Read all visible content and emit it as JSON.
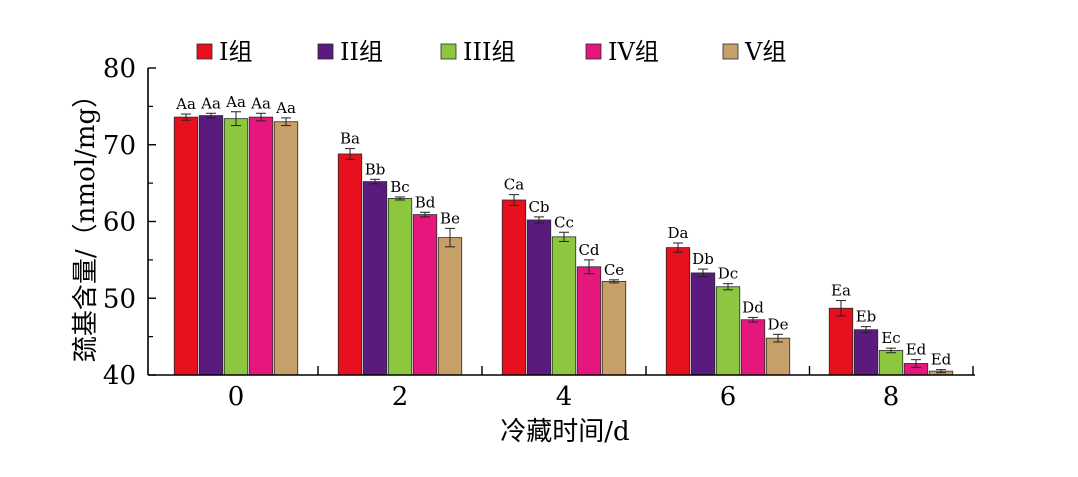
{
  "chart_data": {
    "type": "bar",
    "xlabel": "冷藏时间/d",
    "ylabel": "巯基含量/（nmol/mg）",
    "ylim": [
      40,
      80
    ],
    "yticks": [
      40,
      50,
      60,
      70,
      80
    ],
    "categories": [
      "0",
      "2",
      "4",
      "6",
      "8"
    ],
    "legend_position": "top",
    "series": [
      {
        "name": "I组",
        "color": "#e8101e",
        "values": [
          73.6,
          68.8,
          62.8,
          56.6,
          48.7
        ],
        "errors": [
          0.4,
          0.7,
          0.7,
          0.6,
          1.0
        ],
        "labels": [
          "Aa",
          "Ba",
          "Ca",
          "Da",
          "Ea"
        ]
      },
      {
        "name": "II组",
        "color": "#5b1a7e",
        "values": [
          73.8,
          65.2,
          60.2,
          53.3,
          45.9
        ],
        "errors": [
          0.3,
          0.3,
          0.4,
          0.5,
          0.4
        ],
        "labels": [
          "Aa",
          "Bb",
          "Cb",
          "Db",
          "Eb"
        ]
      },
      {
        "name": "III组",
        "color": "#8dc63f",
        "values": [
          73.4,
          63.0,
          58.0,
          51.5,
          43.2
        ],
        "errors": [
          0.9,
          0.2,
          0.6,
          0.4,
          0.3
        ],
        "labels": [
          "Aa",
          "Bc",
          "Cc",
          "Dc",
          "Ec"
        ]
      },
      {
        "name": "IV组",
        "color": "#e5177c",
        "values": [
          73.6,
          60.9,
          54.1,
          47.2,
          41.5
        ],
        "errors": [
          0.5,
          0.3,
          0.9,
          0.3,
          0.5
        ],
        "labels": [
          "Aa",
          "Bd",
          "Cd",
          "Dd",
          "Ed"
        ]
      },
      {
        "name": "V组",
        "color": "#c7a069",
        "values": [
          73.0,
          57.9,
          52.2,
          44.8,
          40.5
        ],
        "errors": [
          0.5,
          1.2,
          0.2,
          0.5,
          0.2
        ],
        "labels": [
          "Aa",
          "Be",
          "Ce",
          "De",
          "Ed"
        ]
      }
    ]
  }
}
